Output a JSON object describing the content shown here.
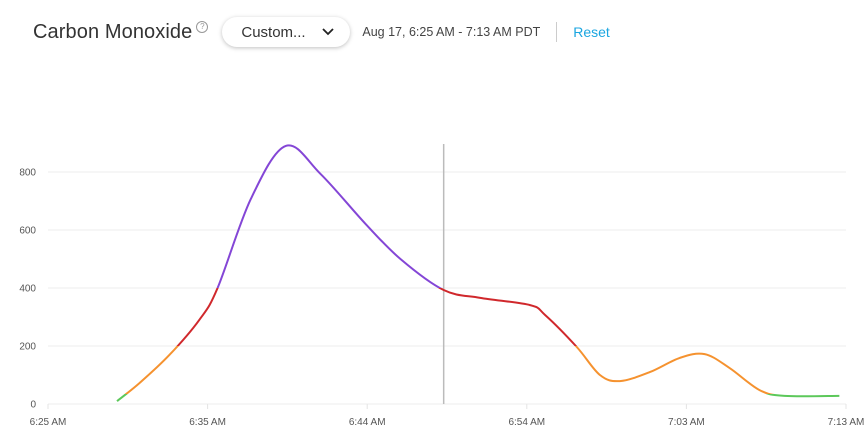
{
  "header": {
    "title": "Carbon Monoxide",
    "help_icon": "question-circle-icon",
    "help_glyph": "?",
    "dropdown_value": "Custom...",
    "dropdown_icon": "chevron-down-icon",
    "date_range": "Aug 17, 6:25 AM - 7:13 AM PDT",
    "reset_label": "Reset",
    "accent_color": "#1ba6e0"
  },
  "chart_data": {
    "type": "line",
    "title": "",
    "xlabel": "",
    "ylabel": "",
    "xlim": [
      "6:25:00",
      "7:13:00"
    ],
    "ylim": [
      0,
      900
    ],
    "grid": true,
    "x_ticks": [
      "6:25 AM",
      "6:35 AM",
      "6:44 AM",
      "6:54 AM",
      "7:03 AM",
      "7:13 AM"
    ],
    "y_ticks": [
      "0",
      "200",
      "400",
      "600",
      "800"
    ],
    "y_tick_values": [
      0,
      200,
      400,
      600,
      800
    ],
    "cursor_time": "6:48:48",
    "color_bands": [
      {
        "max": 35,
        "color": "#5cc85a"
      },
      {
        "max": 200,
        "color": "#f5922f"
      },
      {
        "max": 400,
        "color": "#d0282c"
      },
      {
        "max": 10000,
        "color": "#8446d6"
      }
    ],
    "series": [
      {
        "x": [
          "6:29:09",
          "6:30:30",
          "6:32:18",
          "6:34:06",
          "6:35:12",
          "6:37:12",
          "6:39:18",
          "6:41:24",
          "6:44:06",
          "6:46:12",
          "6:48:48",
          "6:51:00",
          "6:54:00",
          "6:54:54",
          "6:56:48",
          "6:58:12",
          "6:59:24",
          "7:01:12",
          "7:03:00",
          "7:04:30",
          "7:06:00",
          "7:07:48",
          "7:09:18",
          "7:12:36"
        ],
        "values": [
          10,
          72,
          169,
          290,
          400,
          707,
          890,
          793,
          621,
          500,
          393,
          366,
          341,
          307,
          197,
          100,
          79,
          110,
          159,
          172,
          124,
          48,
          28,
          28
        ]
      }
    ]
  }
}
